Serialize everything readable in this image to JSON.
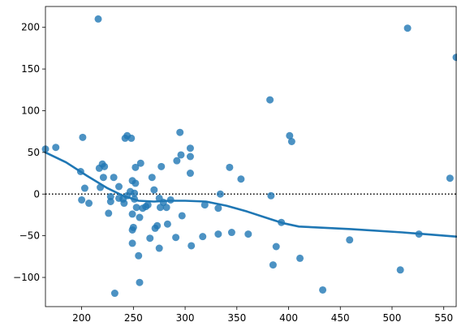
{
  "chart_data": {
    "type": "scatter",
    "title": "",
    "xlabel": "",
    "ylabel": "",
    "xlim": [
      165,
      562
    ],
    "ylim": [
      -135,
      225
    ],
    "xticks": [
      200,
      250,
      300,
      350,
      400,
      450,
      500,
      550
    ],
    "yticks": [
      -100,
      -50,
      0,
      50,
      100,
      150,
      200
    ],
    "xtick_labels": [
      "200",
      "250",
      "300",
      "350",
      "400",
      "450",
      "500",
      "550"
    ],
    "ytick_labels": [
      "−100",
      "−50",
      "0",
      "50",
      "100",
      "150",
      "200"
    ],
    "grid": false,
    "legend": "none",
    "colors": {
      "points": "#1f77b4",
      "trend": "#1f77b4",
      "reference": "#000000"
    },
    "points": [
      [
        165,
        54
      ],
      [
        175,
        56
      ],
      [
        199,
        27
      ],
      [
        200,
        -7
      ],
      [
        201,
        68
      ],
      [
        203,
        7
      ],
      [
        207,
        -11
      ],
      [
        216,
        210
      ],
      [
        217,
        31
      ],
      [
        218,
        8
      ],
      [
        220,
        36
      ],
      [
        221,
        20
      ],
      [
        222,
        33
      ],
      [
        226,
        -23
      ],
      [
        228,
        -3
      ],
      [
        228,
        -9
      ],
      [
        231,
        20
      ],
      [
        232,
        -119
      ],
      [
        236,
        9
      ],
      [
        236,
        -5
      ],
      [
        240,
        -6
      ],
      [
        241,
        -11
      ],
      [
        242,
        67
      ],
      [
        244,
        70
      ],
      [
        244,
        -2
      ],
      [
        247,
        3
      ],
      [
        248,
        67
      ],
      [
        249,
        -43
      ],
      [
        249,
        16
      ],
      [
        249,
        -24
      ],
      [
        249,
        -59
      ],
      [
        250,
        -40
      ],
      [
        251,
        1
      ],
      [
        251,
        -6
      ],
      [
        252,
        32
      ],
      [
        252,
        13
      ],
      [
        253,
        -16
      ],
      [
        255,
        -74
      ],
      [
        256,
        -106
      ],
      [
        256,
        -28
      ],
      [
        257,
        37
      ],
      [
        259,
        -17
      ],
      [
        262,
        -15
      ],
      [
        264,
        -13
      ],
      [
        266,
        -53
      ],
      [
        268,
        20
      ],
      [
        270,
        5
      ],
      [
        271,
        -41
      ],
      [
        273,
        -38
      ],
      [
        275,
        -5
      ],
      [
        275,
        -65
      ],
      [
        276,
        -16
      ],
      [
        277,
        33
      ],
      [
        279,
        -10
      ],
      [
        282,
        -16
      ],
      [
        283,
        -36
      ],
      [
        286,
        -7
      ],
      [
        291,
        -52
      ],
      [
        292,
        40
      ],
      [
        295,
        74
      ],
      [
        296,
        47
      ],
      [
        297,
        -26
      ],
      [
        305,
        55
      ],
      [
        305,
        25
      ],
      [
        305,
        45
      ],
      [
        306,
        -62
      ],
      [
        317,
        -51
      ],
      [
        319,
        -13
      ],
      [
        332,
        -17
      ],
      [
        332,
        -48
      ],
      [
        334,
        0
      ],
      [
        343,
        32
      ],
      [
        345,
        -46
      ],
      [
        354,
        18
      ],
      [
        361,
        -48
      ],
      [
        382,
        113
      ],
      [
        383,
        -2
      ],
      [
        385,
        -85
      ],
      [
        388,
        -63
      ],
      [
        393,
        -34
      ],
      [
        401,
        70
      ],
      [
        403,
        63
      ],
      [
        411,
        -77
      ],
      [
        433,
        -115
      ],
      [
        459,
        -55
      ],
      [
        508,
        -91
      ],
      [
        515,
        199
      ],
      [
        526,
        -48
      ],
      [
        556,
        19
      ],
      [
        562,
        164
      ]
    ],
    "trend_line": [
      [
        165,
        50
      ],
      [
        185,
        38
      ],
      [
        205,
        22
      ],
      [
        225,
        7
      ],
      [
        240,
        -2
      ],
      [
        255,
        -8
      ],
      [
        270,
        -9
      ],
      [
        285,
        -8
      ],
      [
        300,
        -8
      ],
      [
        320,
        -9
      ],
      [
        340,
        -14
      ],
      [
        360,
        -21
      ],
      [
        380,
        -29
      ],
      [
        395,
        -35
      ],
      [
        410,
        -39
      ],
      [
        460,
        -42
      ],
      [
        510,
        -46
      ],
      [
        562,
        -51
      ]
    ],
    "reference_line_y": 0
  }
}
